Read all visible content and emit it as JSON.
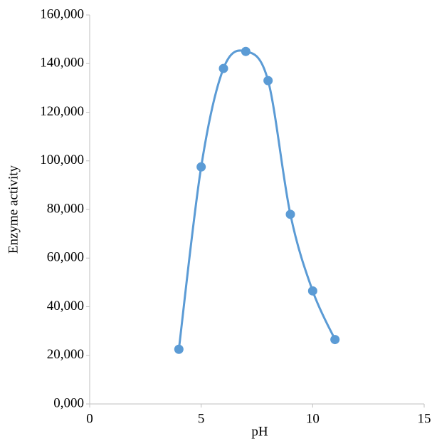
{
  "chart_data": {
    "type": "scatter",
    "x_label": "pH",
    "y_label": "Enzyme activity",
    "x": [
      4,
      5,
      6,
      7,
      8,
      9,
      10,
      11
    ],
    "series": [
      {
        "color": "#5b9bd5",
        "values": [
          22500,
          97500,
          138000,
          145000,
          133000,
          78000,
          46500,
          26500
        ]
      }
    ],
    "smooth": true,
    "xlim": [
      0,
      15
    ],
    "xticks": [
      0,
      5,
      10,
      15
    ],
    "ylim": [
      0,
      160000
    ],
    "yticks": [
      {
        "value": 0,
        "label": "0,000"
      },
      {
        "value": 20000,
        "label": "20,000"
      },
      {
        "value": 40000,
        "label": "40,000"
      },
      {
        "value": 60000,
        "label": "60,000"
      },
      {
        "value": 80000,
        "label": "80,000"
      },
      {
        "value": 100000,
        "label": "100,000"
      },
      {
        "value": 120000,
        "label": "120,000"
      },
      {
        "value": 140000,
        "label": "140,000"
      },
      {
        "value": 160000,
        "label": "160,000"
      }
    ]
  }
}
